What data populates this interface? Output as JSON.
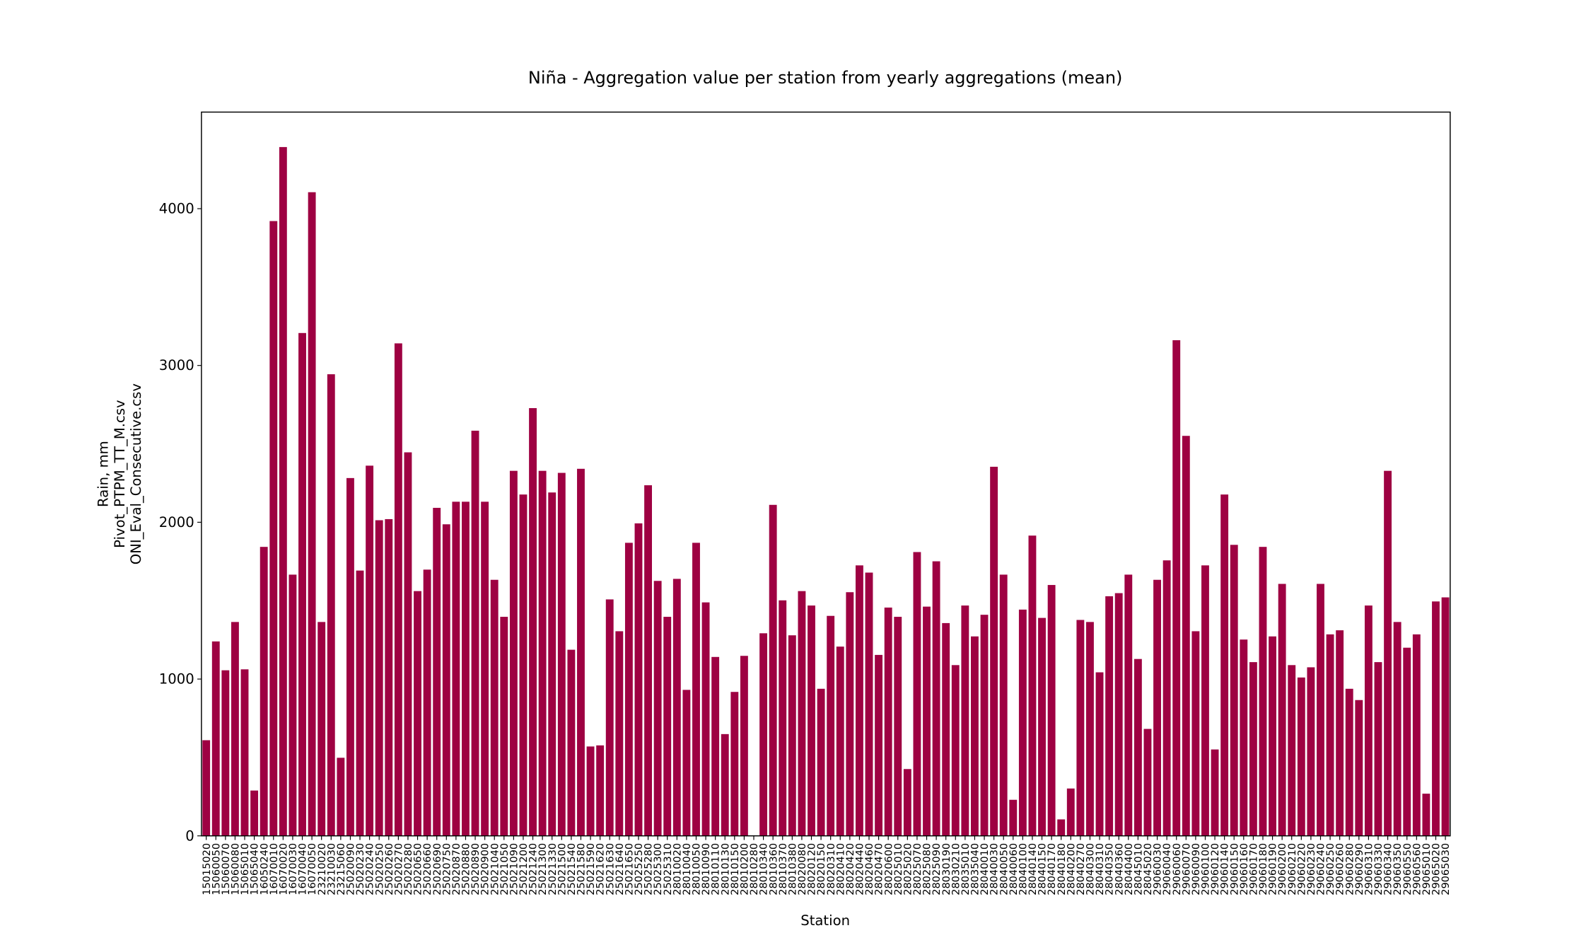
{
  "chart_data": {
    "type": "bar",
    "title": "Niña - Aggregation value per station from yearly aggregations (mean)",
    "xlabel": "Station",
    "ylabel": [
      "Rain, mm",
      "Pivot_PTPM_TT_M.csv",
      "ONI_Eval_Consecutive.csv"
    ],
    "color": "#9e0142",
    "ylim": [
      0,
      4616
    ],
    "yticks": [
      0,
      1000,
      2000,
      3000,
      4000
    ],
    "categories": [
      "15015020",
      "15060050",
      "15060070",
      "15060080",
      "15065010",
      "15065040",
      "16050240",
      "16070010",
      "16070020",
      "16070030",
      "16070040",
      "16070050",
      "23210020",
      "23210030",
      "23215060",
      "25020090",
      "25020230",
      "25020240",
      "25020250",
      "25020260",
      "25020270",
      "25020280",
      "25020650",
      "25020660",
      "25020690",
      "25020750",
      "25020870",
      "25020880",
      "25020890",
      "25020900",
      "25021040",
      "25021050",
      "25021090",
      "25021200",
      "25021240",
      "25021300",
      "25021330",
      "25021500",
      "25021540",
      "25021580",
      "25021590",
      "25021620",
      "25021630",
      "25021640",
      "25021650",
      "25025250",
      "25025280",
      "25025300",
      "25025310",
      "28010020",
      "28010040",
      "28010050",
      "28010090",
      "28010110",
      "28010130",
      "28010150",
      "28010200",
      "28010280",
      "28010340",
      "28010360",
      "28010370",
      "28010380",
      "28020080",
      "28020120",
      "28020150",
      "28020310",
      "28020410",
      "28020420",
      "28020440",
      "28020460",
      "28020470",
      "28020600",
      "28025010",
      "28025020",
      "28025070",
      "28025080",
      "28025090",
      "28030190",
      "28030210",
      "28035010",
      "28035040",
      "28040010",
      "28040030",
      "28040050",
      "28040060",
      "28040100",
      "28040140",
      "28040150",
      "28040170",
      "28040180",
      "28040200",
      "28040270",
      "28040300",
      "28040310",
      "28040350",
      "28040360",
      "28040400",
      "28045010",
      "28045020",
      "29060030",
      "29060040",
      "29060060",
      "29060070",
      "29060090",
      "29060100",
      "29060120",
      "29060140",
      "29060150",
      "29060160",
      "29060170",
      "29060180",
      "29060190",
      "29060200",
      "29060210",
      "29060220",
      "29060230",
      "29060240",
      "29060250",
      "29060260",
      "29060280",
      "29060290",
      "29060310",
      "29060330",
      "29060340",
      "29060350",
      "29060550",
      "29060560",
      "29065010",
      "29065020",
      "29065030"
    ],
    "values": [
      610,
      1240,
      1056,
      1364,
      1062,
      289,
      1843,
      3921,
      4393,
      1666,
      3207,
      4105,
      1364,
      2944,
      498,
      2282,
      1692,
      2361,
      2013,
      2020,
      3141,
      2446,
      1561,
      1698,
      2092,
      1987,
      2131,
      2131,
      2584,
      2131,
      1633,
      1397,
      2328,
      2177,
      2728,
      2328,
      2190,
      2315,
      1187,
      2341,
      570,
      577,
      1508,
      1305,
      1869,
      1993,
      2236,
      1626,
      1397,
      1639,
      931,
      1869,
      1489,
      1141,
      649,
      918,
      1148,
      0,
      1292,
      2111,
      1502,
      1279,
      1561,
      1469,
      938,
      1403,
      1207,
      1554,
      1725,
      1679,
      1154,
      1456,
      1397,
      426,
      1810,
      1462,
      1751,
      1357,
      1089,
      1469,
      1272,
      1410,
      2354,
      1666,
      230,
      1443,
      1915,
      1390,
      1600,
      105,
      302,
      1377,
      1364,
      1043,
      1528,
      1548,
      1666,
      1128,
      682,
      1633,
      1757,
      3161,
      2551,
      1305,
      1725,
      551,
      2177,
      1856,
      1252,
      1108,
      1843,
      1272,
      1607,
      1089,
      1010,
      1075,
      1607,
      1285,
      1311,
      938,
      866,
      1469,
      1108,
      2328,
      1364,
      1200,
      1285,
      269,
      1495,
      1521
    ]
  }
}
